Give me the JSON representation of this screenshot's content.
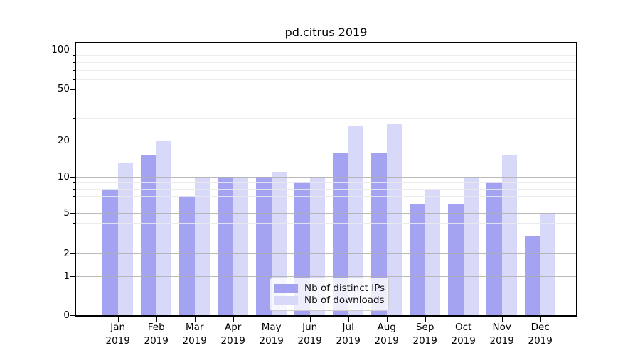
{
  "title": "pd.citrus 2019",
  "colors": {
    "distinct_ips": "#a3a3f1",
    "downloads": "#d8d8f8",
    "major_grid": "#b4b4b4",
    "minor_grid": "#e9e9e9",
    "spine": "#000000"
  },
  "chart_data": {
    "type": "bar",
    "title": "pd.citrus 2019",
    "categories": [
      "Jan 2019",
      "Feb 2019",
      "Mar 2019",
      "Apr 2019",
      "May 2019",
      "Jun 2019",
      "Jul 2019",
      "Aug 2019",
      "Sep 2019",
      "Oct 2019",
      "Nov 2019",
      "Dec 2019"
    ],
    "months": [
      "Jan",
      "Feb",
      "Mar",
      "Apr",
      "May",
      "Jun",
      "Jul",
      "Aug",
      "Sep",
      "Oct",
      "Nov",
      "Dec"
    ],
    "year_label": "2019",
    "series": [
      {
        "name": "Nb of distinct IPs",
        "color": "#a3a3f1",
        "values": [
          8,
          15,
          7,
          10,
          10,
          9,
          16,
          16,
          6,
          6,
          9,
          3
        ]
      },
      {
        "name": "Nb of downloads",
        "color": "#d8d8f8",
        "values": [
          13,
          20,
          10,
          10,
          11,
          10,
          26,
          27,
          8,
          10,
          15,
          5
        ]
      }
    ],
    "yscale": "symlog",
    "ylim": [
      0,
      113
    ],
    "yticks": [
      0,
      1,
      2,
      5,
      10,
      20,
      50,
      100
    ],
    "minor_gridlines": [
      3,
      4,
      6,
      7,
      8,
      9,
      30,
      40,
      60,
      70,
      80,
      90
    ],
    "grid": true,
    "legend": {
      "position": "lower center",
      "labels": [
        "Nb of distinct IPs",
        "Nb of downloads"
      ]
    }
  }
}
